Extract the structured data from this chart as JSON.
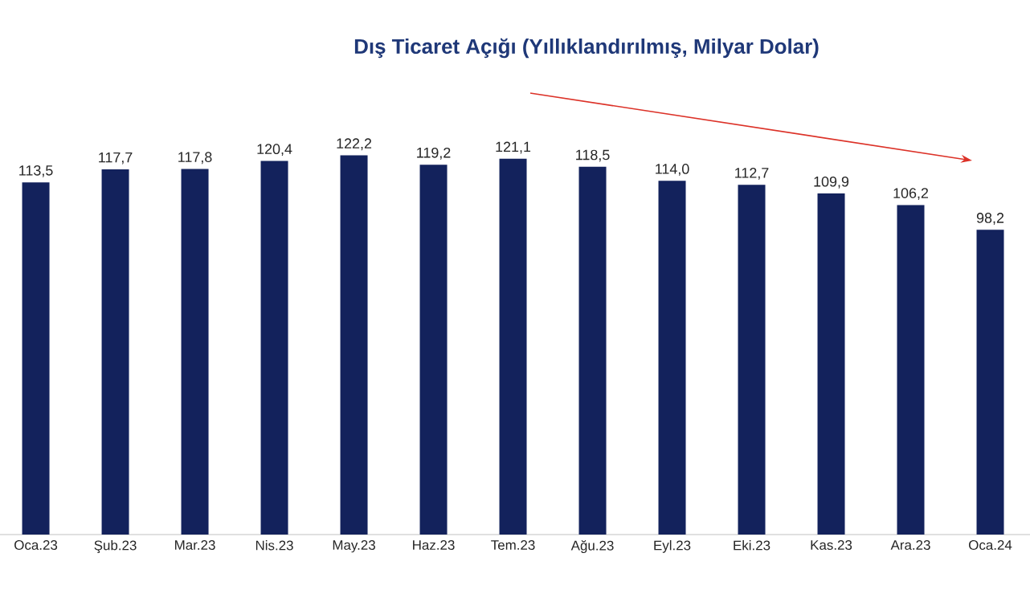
{
  "chart_data": {
    "type": "bar",
    "title": "Dış Ticaret Açığı (Yıllıklandırılmış, Milyar Dolar)",
    "categories": [
      "Oca.23",
      "Şub.23",
      "Mar.23",
      "Nis.23",
      "May.23",
      "Haz.23",
      "Tem.23",
      "Ağu.23",
      "Eyl.23",
      "Eki.23",
      "Kas.23",
      "Ara.23",
      "Oca.24"
    ],
    "values": [
      113.5,
      117.7,
      117.8,
      120.4,
      122.2,
      119.2,
      121.1,
      118.5,
      114.0,
      112.7,
      109.9,
      106.2,
      98.2
    ],
    "value_labels": [
      "113,5",
      "117,7",
      "117,8",
      "120,4",
      "122,2",
      "119,2",
      "121,1",
      "118,5",
      "114,0",
      "112,7",
      "109,9",
      "106,2",
      "98,2"
    ],
    "color": "#13225c"
  }
}
